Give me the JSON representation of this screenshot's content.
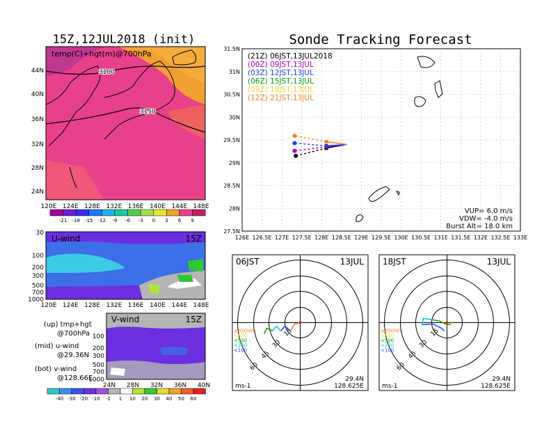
{
  "left": {
    "title": "15Z,12JUL2018 (init)",
    "map_label": "temp(C)+hgt(m)@700hPa",
    "contours": [
      "3100",
      "3150"
    ],
    "lat_ticks": [
      "44N",
      "40N",
      "36N",
      "32N",
      "28N",
      "24N"
    ],
    "lon_ticks": [
      "120E",
      "124E",
      "128E",
      "132E",
      "136E",
      "140E",
      "144E",
      "148E"
    ],
    "temp_colorbar": [
      "-21",
      "-18",
      "-15",
      "-12",
      "-9",
      "-6",
      "-3",
      "0",
      "3",
      "6",
      "9"
    ],
    "uwind": {
      "label": "U-wind",
      "time": "15Z",
      "p_ticks": [
        "30",
        "100",
        "200",
        "300",
        "500",
        "700",
        "1000"
      ]
    },
    "vwind": {
      "label": "V-wind",
      "time": "15Z",
      "p_ticks": [
        "100",
        "200",
        "300",
        "500",
        "700",
        "1000"
      ],
      "lat_ticks": [
        "24N",
        "28N",
        "32N",
        "36N",
        "40N"
      ]
    },
    "notes": [
      "(up) tmp+hgt",
      "@700hPa",
      "(mid) u-wind",
      "@29.36N",
      "(bot) v-wind",
      "@128.66E"
    ],
    "wind_colorbar": [
      "-40",
      "-30",
      "-20",
      "-10",
      "-1",
      "1",
      "10",
      "20",
      "30",
      "40",
      "50",
      "60"
    ]
  },
  "chart_data": {
    "type": "scatter",
    "title": "Sonde Tracking Forecast",
    "xlim": [
      126,
      133
    ],
    "ylim": [
      27.5,
      31.5
    ],
    "x_ticks": [
      "126E",
      "126.5E",
      "127E",
      "127.5E",
      "128E",
      "128.5E",
      "129E",
      "129.5E",
      "130E",
      "130.5E",
      "131E",
      "131.5E",
      "132E",
      "132.5E",
      "133E"
    ],
    "y_ticks": [
      "31.5N",
      "31N",
      "30.5N",
      "30N",
      "29.5N",
      "29N",
      "28.5N",
      "28N",
      "27.5N"
    ],
    "launch": {
      "x": 128.63,
      "y": 29.4
    },
    "series": [
      {
        "name": "(21Z)  06JST,13JUL2018",
        "color": "#000000",
        "end": {
          "x": 127.35,
          "y": 29.15
        },
        "mid": {
          "x": 128.12,
          "y": 29.32
        }
      },
      {
        "name": "(00Z)  09JST,13JUL",
        "color": "#a000c8",
        "end": {
          "x": 127.32,
          "y": 29.26
        },
        "mid": {
          "x": 128.12,
          "y": 29.35
        }
      },
      {
        "name": "(03Z)  12JST,13JUL",
        "color": "#1e3cff",
        "end": {
          "x": 127.32,
          "y": 29.43
        },
        "mid": {
          "x": 128.12,
          "y": 29.37
        }
      },
      {
        "name": "(06Z)  15JST,13JUL",
        "color": "#00a000",
        "end": null,
        "mid": null
      },
      {
        "name": "(09Z)  18JST,13JUL",
        "color": "#e6dc32",
        "end": null,
        "mid": null
      },
      {
        "name": "(12Z)  21JST,13JUL",
        "color": "#f08228",
        "end": {
          "x": 127.32,
          "y": 29.59
        },
        "mid": {
          "x": 128.12,
          "y": 29.46
        }
      }
    ],
    "params": [
      "VUP=  6.0  m/s",
      "VDW= -4.0  m/s",
      "Burst Alt=  18.0  km"
    ]
  },
  "hodographs": [
    {
      "time": "06JST",
      "date": "13JUL",
      "lat": "29.4N",
      "lon": "128.625E",
      "unit": "ms-1",
      "rings": [
        "15",
        "30",
        "45",
        "60"
      ],
      "levels": [
        {
          "t": "≥850hPa",
          "c": "#f08228"
        },
        {
          "t": "<850",
          "c": "#e6dc32"
        },
        {
          "t": "<500",
          "c": "#00a000"
        },
        {
          "t": "<250",
          "c": "#00c8c8"
        },
        {
          "t": "<100",
          "c": "#1e3cff"
        }
      ]
    },
    {
      "time": "18JST",
      "date": "13JUL",
      "lat": "29.4N",
      "lon": "128.625E",
      "unit": "ms-1",
      "rings": [
        "15",
        "30",
        "45",
        "60"
      ],
      "levels": [
        {
          "t": "≥850hPa",
          "c": "#f08228"
        },
        {
          "t": "<850",
          "c": "#e6dc32"
        },
        {
          "t": "<500",
          "c": "#00a000"
        },
        {
          "t": "<250",
          "c": "#00c8c8"
        },
        {
          "t": "<100",
          "c": "#1e3cff"
        }
      ]
    }
  ]
}
